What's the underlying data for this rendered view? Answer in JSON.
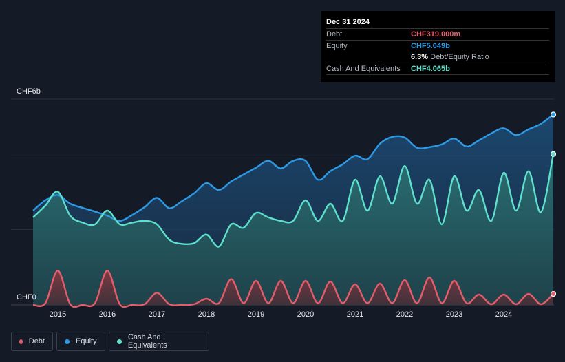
{
  "tooltip": {
    "date": "Dec 31 2024",
    "debt_label": "Debt",
    "debt_value": "CHF319.000m",
    "equity_label": "Equity",
    "equity_value": "CHF5.049b",
    "ratio_value": "6.3%",
    "ratio_label": "Debt/Equity Ratio",
    "cash_label": "Cash And Equivalents",
    "cash_value": "CHF4.065b"
  },
  "legend": [
    {
      "label": "Debt",
      "color": "#e35d6a"
    },
    {
      "label": "Equity",
      "color": "#2d9ae6"
    },
    {
      "label": "Cash And Equivalents",
      "color": "#5ee0cc"
    }
  ],
  "colors": {
    "debt": "#e35d6a",
    "equity": "#2d9ae6",
    "cash": "#5ee0cc",
    "background": "#151b26"
  },
  "chart_data": {
    "type": "area",
    "ylabel_top": "CHF6b",
    "ylabel_bottom": "CHF0",
    "ylim": [
      0,
      6
    ],
    "y_unit": "CHF billions",
    "xlim": [
      2014.5,
      2025.0
    ],
    "xticks": [
      2015,
      2016,
      2017,
      2018,
      2019,
      2020,
      2021,
      2022,
      2023,
      2024
    ],
    "xtick_labels": [
      "2015",
      "2016",
      "2017",
      "2018",
      "2019",
      "2020",
      "2021",
      "2022",
      "2023",
      "2024"
    ],
    "series": [
      {
        "name": "Equity",
        "x": [
          2014.5,
          2014.75,
          2015.0,
          2015.25,
          2015.5,
          2015.75,
          2016.0,
          2016.25,
          2016.5,
          2016.75,
          2017.0,
          2017.25,
          2017.5,
          2017.75,
          2018.0,
          2018.25,
          2018.5,
          2018.75,
          2019.0,
          2019.25,
          2019.5,
          2019.75,
          2020.0,
          2020.25,
          2020.5,
          2020.75,
          2021.0,
          2021.25,
          2021.5,
          2021.75,
          2022.0,
          2022.25,
          2022.5,
          2022.75,
          2023.0,
          2023.25,
          2023.5,
          2023.75,
          2024.0,
          2024.25,
          2024.5,
          2024.75,
          2025.0
        ],
        "values": [
          2.75,
          3.05,
          3.2,
          2.95,
          2.83,
          2.72,
          2.6,
          2.45,
          2.62,
          2.85,
          3.12,
          2.82,
          3.02,
          3.25,
          3.55,
          3.35,
          3.6,
          3.8,
          4.0,
          4.2,
          3.98,
          4.2,
          4.2,
          3.65,
          3.9,
          4.1,
          4.35,
          4.25,
          4.7,
          4.9,
          4.88,
          4.58,
          4.6,
          4.68,
          4.85,
          4.62,
          4.8,
          5.0,
          5.15,
          4.95,
          5.12,
          5.28,
          5.55
        ]
      },
      {
        "name": "Cash And Equivalents",
        "x": [
          2014.5,
          2014.75,
          2015.0,
          2015.25,
          2015.5,
          2015.75,
          2016.0,
          2016.25,
          2016.5,
          2016.75,
          2017.0,
          2017.25,
          2017.5,
          2017.75,
          2018.0,
          2018.25,
          2018.5,
          2018.75,
          2019.0,
          2019.25,
          2019.5,
          2019.75,
          2020.0,
          2020.25,
          2020.5,
          2020.75,
          2021.0,
          2021.25,
          2021.5,
          2021.75,
          2022.0,
          2022.25,
          2022.5,
          2022.75,
          2023.0,
          2023.25,
          2023.5,
          2023.75,
          2024.0,
          2024.25,
          2024.5,
          2024.75,
          2025.0
        ],
        "values": [
          2.55,
          2.9,
          3.3,
          2.6,
          2.4,
          2.35,
          2.75,
          2.35,
          2.4,
          2.45,
          2.35,
          1.9,
          1.78,
          1.8,
          2.05,
          1.7,
          2.35,
          2.25,
          2.68,
          2.55,
          2.45,
          2.45,
          3.05,
          2.45,
          2.95,
          2.45,
          3.65,
          2.75,
          3.75,
          2.95,
          4.05,
          2.95,
          3.65,
          2.35,
          3.75,
          2.75,
          3.35,
          2.45,
          3.85,
          2.75,
          3.9,
          2.7,
          4.4
        ]
      },
      {
        "name": "Debt",
        "x": [
          2014.5,
          2014.75,
          2015.0,
          2015.25,
          2015.5,
          2015.75,
          2016.0,
          2016.25,
          2016.5,
          2016.75,
          2017.0,
          2017.25,
          2017.5,
          2017.75,
          2018.0,
          2018.25,
          2018.5,
          2018.75,
          2019.0,
          2019.25,
          2019.5,
          2019.75,
          2020.0,
          2020.25,
          2020.5,
          2020.75,
          2021.0,
          2021.25,
          2021.5,
          2021.75,
          2022.0,
          2022.25,
          2022.5,
          2022.75,
          2023.0,
          2023.25,
          2023.5,
          2023.75,
          2024.0,
          2024.25,
          2024.5,
          2024.75,
          2025.0
        ],
        "values": [
          0,
          0.05,
          1.0,
          0.02,
          0.0,
          0.05,
          1.0,
          0.02,
          0.0,
          0.02,
          0.35,
          0.02,
          0.0,
          0.02,
          0.18,
          0.05,
          0.75,
          0.05,
          0.7,
          0.05,
          0.7,
          0.05,
          0.7,
          0.05,
          0.68,
          0.05,
          0.6,
          0.05,
          0.62,
          0.05,
          0.72,
          0.05,
          0.8,
          0.05,
          0.7,
          0.05,
          0.3,
          0.02,
          0.3,
          0.02,
          0.32,
          0.02,
          0.32
        ]
      }
    ],
    "grid": true,
    "legend_position": "bottom-left"
  }
}
